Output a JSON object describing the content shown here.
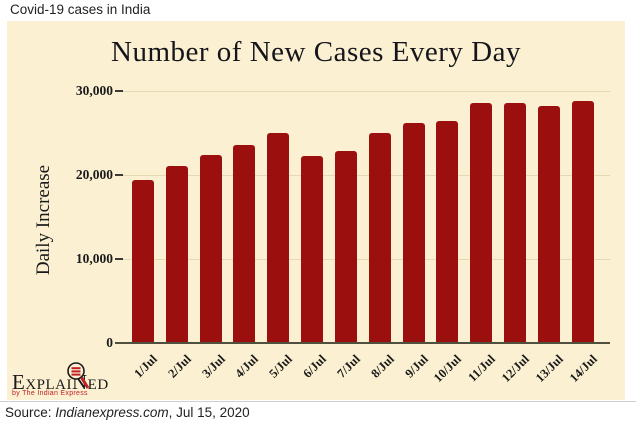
{
  "header": {
    "title": "Covid-19 cases in India"
  },
  "chart_data": {
    "type": "bar",
    "title": "Number of New Cases Every Day",
    "xlabel": "",
    "ylabel": "Daily Increase",
    "categories": [
      "1/Jul",
      "2/Jul",
      "3/Jul",
      "4/Jul",
      "5/Jul",
      "6/Jul",
      "7/Jul",
      "8/Jul",
      "9/Jul",
      "10/Jul",
      "11/Jul",
      "12/Jul",
      "13/Jul",
      "14/Jul"
    ],
    "values": [
      19300,
      21000,
      22300,
      23500,
      24850,
      22100,
      22700,
      24900,
      26100,
      26350,
      28400,
      28400,
      28150,
      28650
    ],
    "ylim": [
      0,
      30000
    ],
    "yticks": [
      {
        "value": 0,
        "label": "0"
      },
      {
        "value": 10000,
        "label": "10,000"
      },
      {
        "value": 20000,
        "label": "20,000"
      },
      {
        "value": 30000,
        "label": "30,000"
      }
    ],
    "grid": true,
    "legend": false,
    "bar_color": "#9B100E",
    "background_color": "#FBF0D1"
  },
  "logo": {
    "word_start": "Explai",
    "letter_n": "N",
    "word_end": "ed",
    "subtitle": "by The Indian Express",
    "accent_color": "#C02026"
  },
  "source": {
    "prefix": "Source: ",
    "site": "Indianexpress.com",
    "suffix": ", Jul 15, 2020"
  }
}
